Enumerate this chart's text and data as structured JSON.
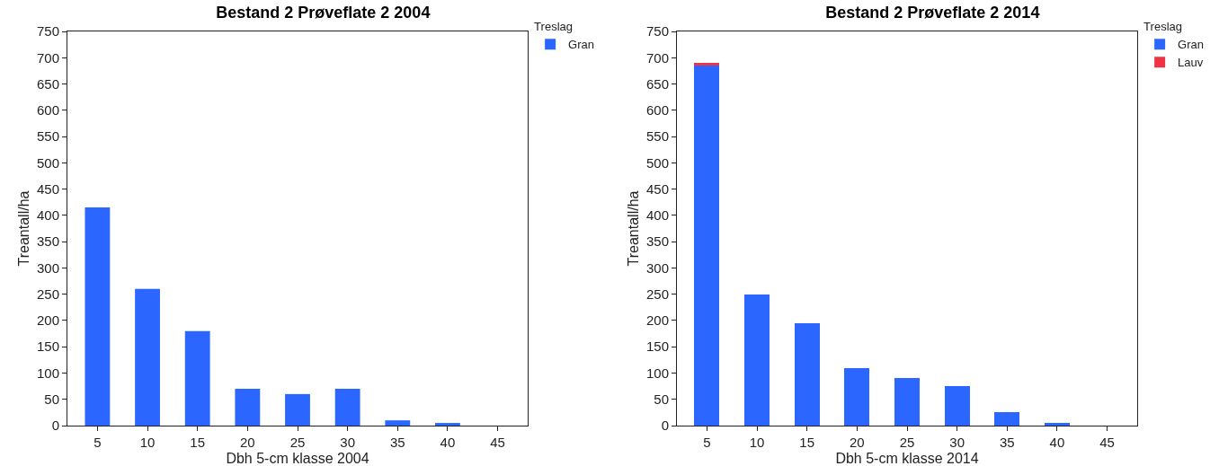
{
  "chart_data": [
    {
      "type": "bar",
      "title": "Bestand 2 Prøveflate 2 2004",
      "xlabel": "Dbh 5-cm klasse 2004",
      "ylabel": "Treantall/ha",
      "legend_title": "Treslag",
      "categories": [
        "5",
        "10",
        "15",
        "20",
        "25",
        "30",
        "35",
        "40",
        "45"
      ],
      "series": [
        {
          "name": "Gran",
          "color": "#2a66ff",
          "values": [
            415,
            260,
            180,
            70,
            60,
            70,
            10,
            5,
            0
          ]
        }
      ],
      "stacked": true,
      "ylim": [
        0,
        750
      ],
      "yticks": [
        0,
        50,
        100,
        150,
        200,
        250,
        300,
        350,
        400,
        450,
        500,
        550,
        600,
        650,
        700,
        750
      ],
      "grid": false,
      "legend": "top right"
    },
    {
      "type": "bar",
      "title": "Bestand 2 Prøveflate 2 2014",
      "xlabel": "Dbh 5-cm klasse 2014",
      "ylabel": "Treantall/ha",
      "legend_title": "Treslag",
      "categories": [
        "5",
        "10",
        "15",
        "20",
        "25",
        "30",
        "35",
        "40",
        "45"
      ],
      "series": [
        {
          "name": "Gran",
          "color": "#2a66ff",
          "values": [
            685,
            250,
            195,
            110,
            90,
            75,
            25,
            5,
            0
          ]
        },
        {
          "name": "Lauv",
          "color": "#ee3344",
          "values": [
            5,
            0,
            0,
            0,
            0,
            0,
            0,
            0,
            0
          ]
        }
      ],
      "stacked": true,
      "ylim": [
        0,
        750
      ],
      "yticks": [
        0,
        50,
        100,
        150,
        200,
        250,
        300,
        350,
        400,
        450,
        500,
        550,
        600,
        650,
        700,
        750
      ],
      "grid": false,
      "legend": "top right"
    }
  ]
}
